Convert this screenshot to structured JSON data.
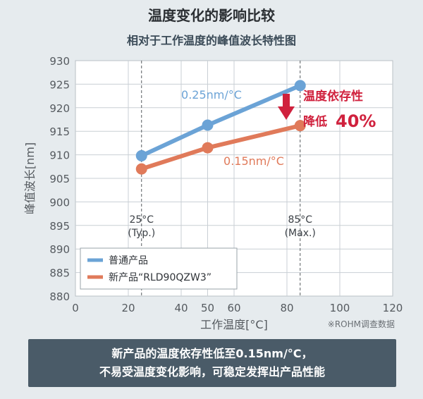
{
  "page": {
    "title": "温度变化的影响比较",
    "footer_line1": "新产品的温度依存性低至0.15nm/°C，",
    "footer_line2": "不易受温度变化影响，可稳定发挥出产品性能"
  },
  "chart_data": {
    "type": "line",
    "title": "相对于工作温度的峰值波长特性图",
    "xlabel": "工作温度[°C]",
    "ylabel": "峰值波长[nm]",
    "xlim": [
      0,
      120
    ],
    "ylim": [
      880,
      930
    ],
    "xticks": [
      0,
      20,
      40,
      50,
      60,
      80,
      100,
      120
    ],
    "yticks": [
      880,
      885,
      890,
      895,
      900,
      905,
      910,
      915,
      920,
      925,
      930
    ],
    "grid": true,
    "legend_position": "bottom-left",
    "series": [
      {
        "name": "普通产品",
        "color": "#6ba3d6",
        "x": [
          25,
          50,
          85
        ],
        "values": [
          909.8,
          916.3,
          924.7
        ]
      },
      {
        "name": "新产品“RLD90QZW3”",
        "color": "#e07a5a",
        "x": [
          25,
          50,
          85
        ],
        "values": [
          907.0,
          911.5,
          916.2
        ]
      }
    ],
    "annotations": {
      "slope_normal": "0.25nm/°C",
      "slope_new": "0.15nm/°C",
      "ref_low_temp": "25°C",
      "ref_low_label": "(Typ.)",
      "ref_high_temp": "85°C",
      "ref_high_label": "(Max.)",
      "callout_line1": "温度依存性",
      "callout_line2_prefix": "降低",
      "callout_line2_value": "40%",
      "source_note": "※ROHM调查数据"
    },
    "ref_lines_x": [
      25,
      85
    ],
    "colors": {
      "callout": "#d0213d",
      "grid": "#c9cfd4",
      "axis_text": "#555a5f"
    }
  }
}
